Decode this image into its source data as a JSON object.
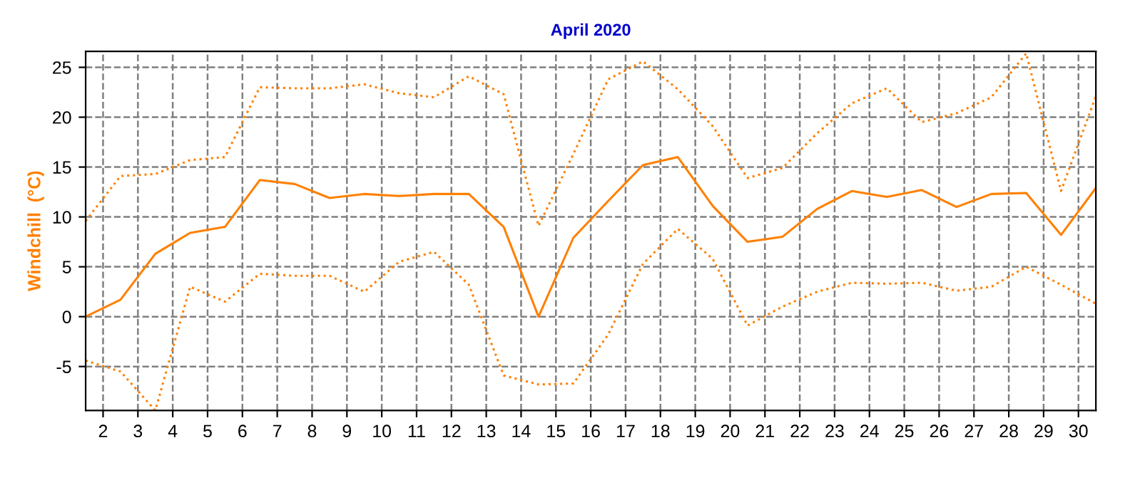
{
  "chart_data": {
    "type": "line",
    "title": "April 2020",
    "ylabel": "Windchill  (°C)",
    "x": [
      1.5,
      2.5,
      3.5,
      4.5,
      5.5,
      6.5,
      7.5,
      8.5,
      9.5,
      10.5,
      11.5,
      12.5,
      13.5,
      14.5,
      15.5,
      16.5,
      17.5,
      18.5,
      19.5,
      20.5,
      21.5,
      22.5,
      23.5,
      24.5,
      25.5,
      26.5,
      27.5,
      28.5,
      29.5,
      30.5
    ],
    "series": [
      {
        "color": "#ff8000",
        "line_style": "dotted",
        "values": [
          9.6,
          14.1,
          14.3,
          15.7,
          16.0,
          23.0,
          22.9,
          22.9,
          23.3,
          22.4,
          22.0,
          24.1,
          22.3,
          9.1,
          16.3,
          23.8,
          25.6,
          22.8,
          19.1,
          13.9,
          14.9,
          18.4,
          21.4,
          22.9,
          19.5,
          20.4,
          22.0,
          26.4,
          12.6,
          22.1
        ]
      },
      {
        "color": "#ff8000",
        "line_style": "solid",
        "values": [
          0,
          1.7,
          6.3,
          8.4,
          9.0,
          13.7,
          13.3,
          11.9,
          12.3,
          12.1,
          12.3,
          12.3,
          9.0,
          0,
          7.9,
          11.6,
          15.2,
          16.0,
          11.1,
          7.5,
          8.0,
          10.8,
          12.6,
          12.0,
          12.7,
          11.0,
          12.3,
          12.4,
          8.2,
          12.9
        ]
      },
      {
        "color": "#ff8000",
        "line_style": "dotted",
        "values": [
          -4.4,
          -5.5,
          -9.4,
          3.0,
          1.5,
          4.3,
          4.1,
          4.1,
          2.5,
          5.5,
          6.5,
          3.2,
          -5.9,
          -6.8,
          -6.7,
          -1.8,
          5.3,
          8.8,
          5.8,
          -0.9,
          1.0,
          2.5,
          3.4,
          3.3,
          3.4,
          2.6,
          3.0,
          5.0,
          3.2,
          1.3
        ]
      }
    ],
    "xlim": [
      1.5,
      30.5
    ],
    "xticks": [
      2,
      3,
      4,
      5,
      6,
      7,
      8,
      9,
      10,
      11,
      12,
      13,
      14,
      15,
      16,
      17,
      18,
      19,
      20,
      21,
      22,
      23,
      24,
      25,
      26,
      27,
      28,
      29,
      30
    ],
    "ylim": [
      -9.4,
      26.6
    ],
    "yticks": [
      -5,
      0,
      5,
      10,
      15,
      20,
      25
    ],
    "grid": true,
    "marker": "none"
  }
}
